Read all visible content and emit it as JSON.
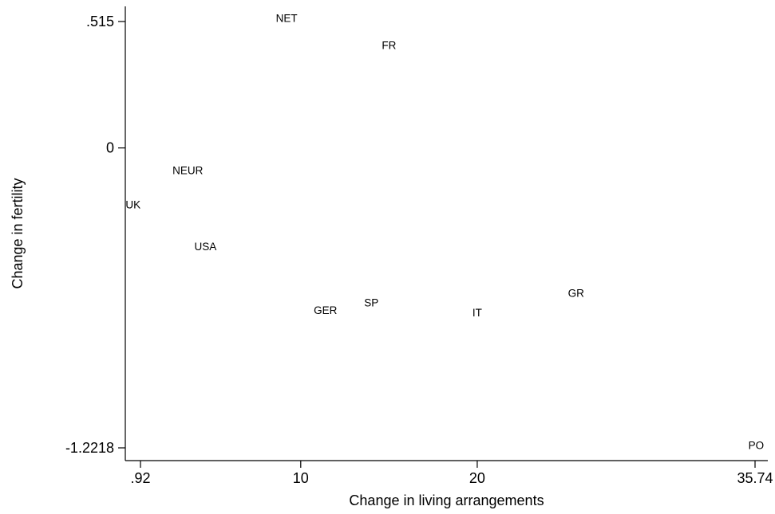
{
  "chart_data": {
    "type": "scatter",
    "xlabel": "Change in living arrangements",
    "ylabel": "Change in fertility",
    "xlim": [
      0.92,
      35.74
    ],
    "ylim": [
      -1.2218,
      0.515
    ],
    "x_ticks": [
      {
        "value": 0.92,
        "label": ".92"
      },
      {
        "value": 10,
        "label": "10"
      },
      {
        "value": 20,
        "label": "20"
      },
      {
        "value": 35.74,
        "label": "35.74"
      }
    ],
    "y_ticks": [
      {
        "value": 0.515,
        "label": ".515"
      },
      {
        "value": 0,
        "label": "0"
      },
      {
        "value": -1.2218,
        "label": "-1.2218"
      }
    ],
    "marker": "label-only",
    "grid": false,
    "points": [
      {
        "label": "NET",
        "x": 9.2,
        "y": 0.53
      },
      {
        "label": "FR",
        "x": 15.0,
        "y": 0.42
      },
      {
        "label": "NEUR",
        "x": 3.6,
        "y": -0.09
      },
      {
        "label": "UK",
        "x": 0.5,
        "y": -0.23
      },
      {
        "label": "USA",
        "x": 4.6,
        "y": -0.4
      },
      {
        "label": "GER",
        "x": 11.4,
        "y": -0.66
      },
      {
        "label": "SP",
        "x": 14.0,
        "y": -0.63
      },
      {
        "label": "IT",
        "x": 20.0,
        "y": -0.67
      },
      {
        "label": "GR",
        "x": 25.6,
        "y": -0.59
      },
      {
        "label": "PO",
        "x": 35.8,
        "y": -1.21
      }
    ]
  }
}
